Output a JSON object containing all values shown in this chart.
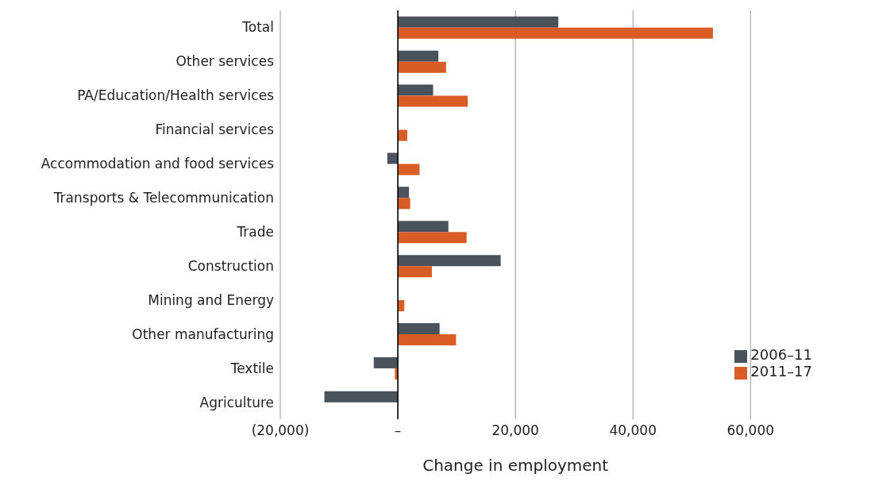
{
  "chart_data": {
    "type": "bar",
    "orientation": "horizontal",
    "xlabel": "Change in employment",
    "categories": [
      "Total",
      "Other services",
      "PA/Education/Health services",
      "Financial services",
      "Accommodation and food services",
      "Transports & Telecommunication",
      "Trade",
      "Construction",
      "Mining and Energy",
      "Other manufacturing",
      "Textile",
      "Agriculture"
    ],
    "series": [
      {
        "name": "2006–11",
        "color": "#4a525c",
        "values": [
          27300,
          6900,
          6000,
          null,
          -1800,
          1900,
          8600,
          17500,
          null,
          7100,
          -4100,
          -12500
        ]
      },
      {
        "name": "2011–17",
        "color": "#d95b26",
        "values": [
          53600,
          8200,
          11900,
          1600,
          3700,
          2100,
          11700,
          5800,
          1100,
          9900,
          -500,
          0
        ]
      }
    ],
    "xlim": [
      -20000,
      60000
    ],
    "xticks": [
      {
        "value": -20000,
        "label": "(20,000)"
      },
      {
        "value": 0,
        "label": "–"
      },
      {
        "value": 20000,
        "label": "20,000"
      },
      {
        "value": 40000,
        "label": "40,000"
      },
      {
        "value": 60000,
        "label": "60,000"
      }
    ],
    "grid": "x",
    "legend": "bottom right"
  }
}
